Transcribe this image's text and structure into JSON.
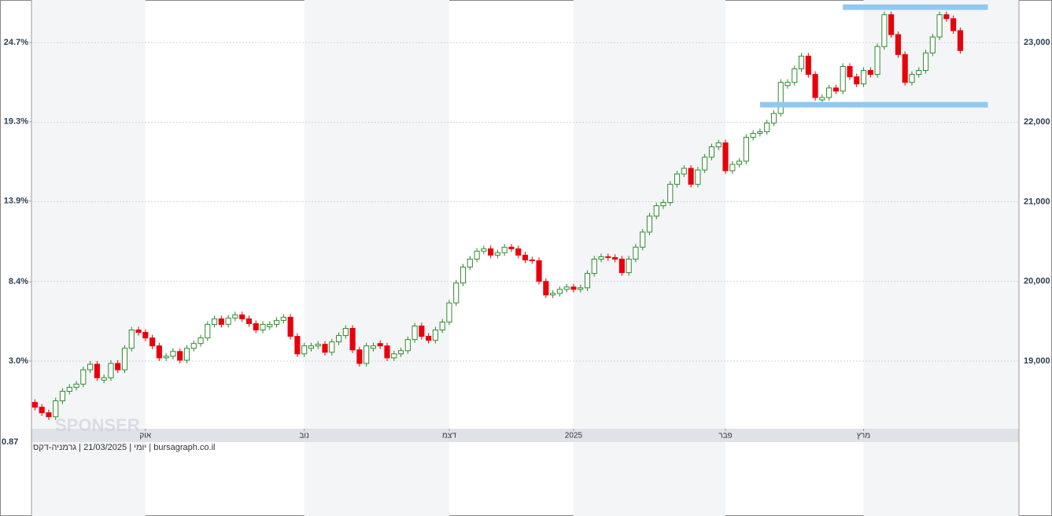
{
  "chart_data": {
    "type": "candlestick",
    "open": [
      18480,
      18420,
      18350,
      18300,
      18500,
      18620,
      18670,
      18710,
      18890,
      18960,
      18760,
      18790,
      18970,
      18890,
      19160,
      19390,
      19360,
      19290,
      19190,
      19040,
      19060,
      19120,
      19010,
      19160,
      19220,
      19290,
      19460,
      19530,
      19460,
      19540,
      19580,
      19530,
      19470,
      19390,
      19430,
      19460,
      19510,
      19550,
      19310,
      19090,
      19160,
      19190,
      19210,
      19110,
      19240,
      19320,
      19410,
      19140,
      18970,
      19160,
      19220,
      19190,
      19040,
      19090,
      19130,
      19270,
      19440,
      19310,
      19260,
      19390,
      19490,
      19730,
      19980,
      20180,
      20280,
      20380,
      20410,
      20330,
      20360,
      20430,
      20410,
      20330,
      20270,
      20260,
      20000,
      19830,
      19850,
      19900,
      19930,
      19900,
      19920,
      20100,
      20280,
      20310,
      20300,
      20280,
      20110,
      20280,
      20430,
      20620,
      20820,
      20950,
      20990,
      21220,
      21350,
      21420,
      21220,
      21400,
      21560,
      21690,
      21740,
      21390,
      21470,
      21510,
      21810,
      21860,
      21880,
      21990,
      22110,
      22460,
      22500,
      22670,
      22830,
      22600,
      22280,
      22310,
      22430,
      22390,
      22700,
      22570,
      22480,
      22650,
      22600,
      22950,
      23350,
      23100,
      22850,
      22500,
      22600,
      22650,
      22870,
      23070,
      23350,
      23300,
      23150
    ],
    "high": [
      18520,
      18460,
      18390,
      18540,
      18660,
      18710,
      18750,
      18930,
      19000,
      19000,
      18830,
      19010,
      19010,
      19200,
      19430,
      19430,
      19400,
      19330,
      19230,
      19100,
      19160,
      19160,
      19200,
      19260,
      19330,
      19500,
      19570,
      19570,
      19580,
      19620,
      19620,
      19570,
      19510,
      19500,
      19500,
      19550,
      19590,
      19590,
      19350,
      19230,
      19230,
      19250,
      19250,
      19280,
      19360,
      19450,
      19450,
      19180,
      19230,
      19230,
      19260,
      19230,
      19130,
      19170,
      19310,
      19480,
      19480,
      19350,
      19430,
      19530,
      19770,
      20020,
      20220,
      20320,
      20420,
      20450,
      20450,
      20400,
      20470,
      20470,
      20450,
      20370,
      20310,
      20300,
      20040,
      19890,
      19940,
      19970,
      19970,
      19960,
      20140,
      20320,
      20350,
      20350,
      20340,
      20320,
      20320,
      20470,
      20660,
      20860,
      20990,
      21030,
      21260,
      21390,
      21460,
      21460,
      21440,
      21600,
      21730,
      21780,
      21780,
      21510,
      21550,
      21850,
      21900,
      21920,
      22030,
      22150,
      22540,
      22540,
      22710,
      22870,
      22870,
      22640,
      22350,
      22470,
      22470,
      22740,
      22740,
      22610,
      22690,
      22690,
      22990,
      23390,
      23390,
      23140,
      22890,
      22640,
      22690,
      22910,
      23110,
      23390,
      23390,
      23340,
      23190
    ],
    "low": [
      18380,
      18310,
      18260,
      18260,
      18460,
      18580,
      18630,
      18670,
      18850,
      18750,
      18720,
      18750,
      18850,
      18850,
      19120,
      19320,
      19250,
      19150,
      19000,
      19000,
      19020,
      18970,
      18970,
      19120,
      19180,
      19250,
      19420,
      19420,
      19420,
      19500,
      19490,
      19430,
      19350,
      19350,
      19390,
      19420,
      19470,
      19270,
      19050,
      19050,
      19120,
      19150,
      19070,
      19070,
      19200,
      19280,
      19100,
      18930,
      18930,
      19120,
      19150,
      19000,
      19000,
      19050,
      19090,
      19230,
      19270,
      19220,
      19220,
      19350,
      19450,
      19690,
      19940,
      20140,
      20240,
      20340,
      20290,
      20290,
      20320,
      20370,
      20290,
      20230,
      20220,
      19960,
      19790,
      19790,
      19810,
      19860,
      19860,
      19860,
      19880,
      20060,
      20240,
      20260,
      20240,
      20070,
      20070,
      20240,
      20390,
      20580,
      20780,
      20910,
      20950,
      21180,
      21310,
      21180,
      21180,
      21360,
      21520,
      21650,
      21350,
      21350,
      21430,
      21470,
      21770,
      21820,
      21840,
      21950,
      22070,
      22420,
      22460,
      22630,
      22560,
      22270,
      22240,
      22270,
      22350,
      22350,
      22530,
      22440,
      22440,
      22560,
      22560,
      22910,
      23060,
      22810,
      22460,
      22460,
      22560,
      22610,
      22830,
      23030,
      23260,
      23110,
      22860
    ],
    "close": [
      18420,
      18350,
      18300,
      18500,
      18620,
      18670,
      18710,
      18890,
      18960,
      18790,
      18790,
      18970,
      18890,
      19160,
      19390,
      19360,
      19290,
      19190,
      19040,
      19060,
      19120,
      19010,
      19160,
      19220,
      19290,
      19460,
      19530,
      19460,
      19540,
      19580,
      19530,
      19470,
      19390,
      19460,
      19460,
      19510,
      19550,
      19310,
      19090,
      19190,
      19190,
      19210,
      19110,
      19240,
      19320,
      19410,
      19140,
      18970,
      19190,
      19190,
      19190,
      19040,
      19090,
      19130,
      19270,
      19440,
      19310,
      19260,
      19390,
      19490,
      19730,
      19980,
      20180,
      20280,
      20380,
      20410,
      20330,
      20360,
      20430,
      20410,
      20330,
      20270,
      20260,
      20000,
      19830,
      19850,
      19900,
      19930,
      19900,
      19920,
      20100,
      20280,
      20310,
      20300,
      20280,
      20110,
      20280,
      20430,
      20620,
      20820,
      20950,
      20990,
      21220,
      21350,
      21420,
      21220,
      21400,
      21560,
      21690,
      21740,
      21390,
      21470,
      21510,
      21810,
      21860,
      21880,
      21990,
      22110,
      22500,
      22500,
      22670,
      22830,
      22600,
      22310,
      22310,
      22430,
      22390,
      22700,
      22570,
      22480,
      22650,
      22600,
      22950,
      23350,
      23100,
      22850,
      22500,
      22600,
      22650,
      22870,
      23070,
      23350,
      23300,
      23150,
      22900
    ],
    "up_color": "#2e8b2e",
    "down_color": "#e8000b",
    "xlim": [
      -0.5,
      142.5
    ],
    "xticks": [
      {
        "value": 16,
        "label": "אוק"
      },
      {
        "value": 39,
        "label": "נוב"
      },
      {
        "value": 60,
        "label": "דצמ"
      },
      {
        "value": 78,
        "label": "2025"
      },
      {
        "value": 100,
        "label": "פבר"
      },
      {
        "value": 120,
        "label": "מרץ"
      }
    ],
    "ylim": [
      18150,
      23515
    ],
    "yticks": [
      {
        "value": 19000,
        "label": "19,000"
      },
      {
        "value": 20000,
        "label": "20,000"
      },
      {
        "value": 21000,
        "label": "21,000"
      },
      {
        "value": 22000,
        "label": "22,000"
      },
      {
        "value": 23000,
        "label": "23,000"
      }
    ],
    "y2lim": [
      -1.61,
      27.49
    ],
    "y2ticks": [
      {
        "value": 3.0,
        "label": "3.0%"
      },
      {
        "value": 8.4,
        "label": "8.4%"
      },
      {
        "value": 13.9,
        "label": "13.9%"
      },
      {
        "value": 19.3,
        "label": "19.3%"
      },
      {
        "value": 24.7,
        "label": "24.7%"
      }
    ],
    "grid": true,
    "hlines": [
      {
        "value": 23445,
        "from": 117,
        "to": 138
      },
      {
        "value": 22220,
        "from": 105,
        "to": 138
      }
    ],
    "hline_color": "#90c8f0",
    "corner_label": "0.87",
    "watermark": "SPONSER",
    "caption": "יומי | 21/03/2025 | גרמניה-דקס | bursagraph.co.il"
  }
}
